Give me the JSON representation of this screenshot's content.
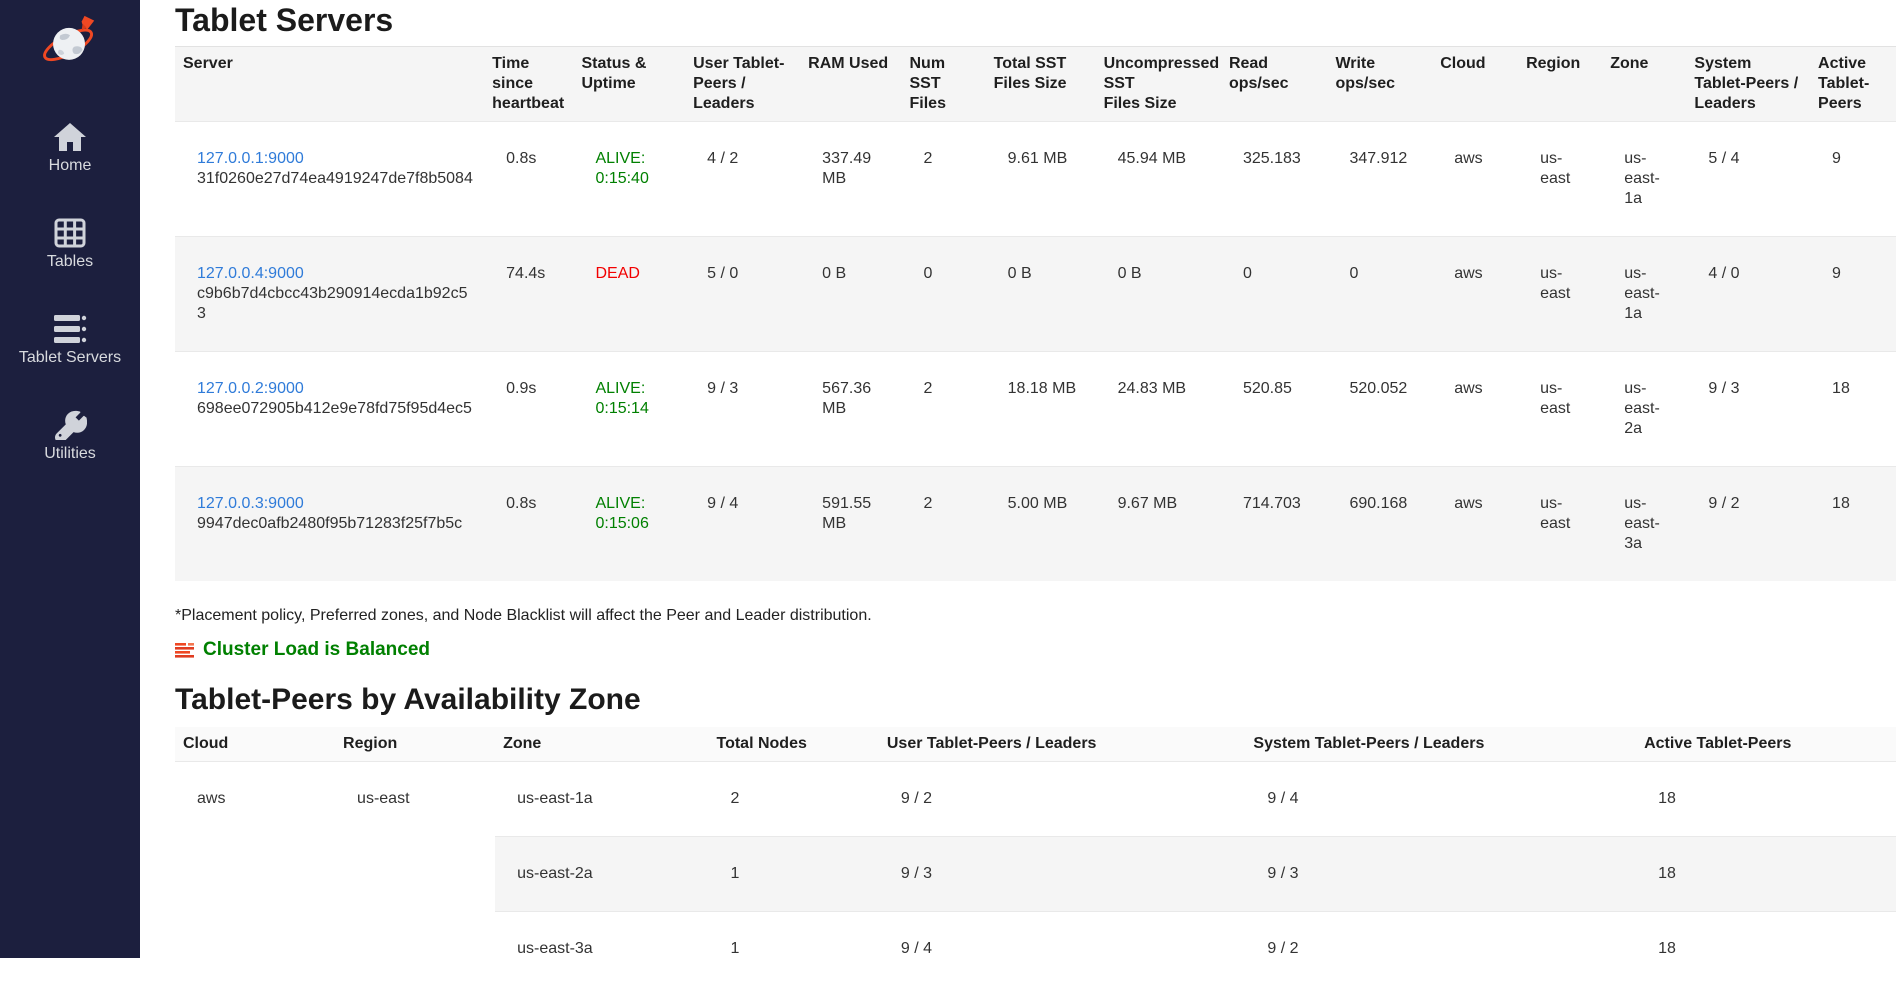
{
  "colors": {
    "link_blue": "#2f7bd9",
    "alive_green": "#008000",
    "dead_red": "#f20000",
    "balanced_green": "#008000",
    "sidebar_bg": "#1c1f3e",
    "brand_orange": "#ef4823"
  },
  "sidebar": {
    "logo_icon": "yugabyte-logo",
    "items": [
      {
        "label": "Home",
        "icon": "home-icon"
      },
      {
        "label": "Tables",
        "icon": "tables-icon"
      },
      {
        "label": "Tablet Servers",
        "icon": "tablet-servers-icon"
      },
      {
        "label": "Utilities",
        "icon": "utilities-wrench-icon"
      }
    ]
  },
  "page": {
    "title": "Tablet Servers",
    "footnote": "*Placement policy, Preferred zones, and Node Blacklist will affect the Peer and Leader distribution.",
    "balance_status": "Cluster Load is Balanced",
    "balance_icon": "load-balancer-icon"
  },
  "servers_table": {
    "columns": [
      "Server",
      "Time since heartbeat",
      "Status & Uptime",
      "User Tablet-Peers / Leaders",
      "RAM Used",
      "Num SST Files",
      "Total SST Files Size",
      "Uncompressed SST\nFiles Size",
      "Read ops/sec",
      "Write ops/sec",
      "Cloud",
      "Region",
      "Zone",
      "System Tablet-Peers / Leaders",
      "Active Tablet-Peers"
    ],
    "rows": [
      {
        "server": "127.0.0.1:9000",
        "uuid": "31f0260e27d74ea4919247de7f8b5084",
        "heartbeat": "0.8s",
        "status": "ALIVE:",
        "uptime": "0:15:40",
        "state": "alive",
        "user_peers": "4 / 2",
        "ram": "337.49 MB",
        "num_sst": "2",
        "sst_size": "9.61 MB",
        "uncompressed_sst_size": "45.94 MB",
        "read_ops": "325.183",
        "write_ops": "347.912",
        "cloud": "aws",
        "region": "us-east",
        "zone": "us-east-1a",
        "system_peers": "5 / 4",
        "active_peers": "9"
      },
      {
        "server": "127.0.0.4:9000",
        "uuid": "c9b6b7d4cbcc43b290914ecda1b92c53",
        "heartbeat": "74.4s",
        "status": "DEAD",
        "uptime": "",
        "state": "dead",
        "user_peers": "5 / 0",
        "ram": "0 B",
        "num_sst": "0",
        "sst_size": "0 B",
        "uncompressed_sst_size": "0 B",
        "read_ops": "0",
        "write_ops": "0",
        "cloud": "aws",
        "region": "us-east",
        "zone": "us-east-1a",
        "system_peers": "4 / 0",
        "active_peers": "9"
      },
      {
        "server": "127.0.0.2:9000",
        "uuid": "698ee072905b412e9e78fd75f95d4ec5",
        "heartbeat": "0.9s",
        "status": "ALIVE:",
        "uptime": "0:15:14",
        "state": "alive",
        "user_peers": "9 / 3",
        "ram": "567.36 MB",
        "num_sst": "2",
        "sst_size": "18.18 MB",
        "uncompressed_sst_size": "24.83 MB",
        "read_ops": "520.85",
        "write_ops": "520.052",
        "cloud": "aws",
        "region": "us-east",
        "zone": "us-east-2a",
        "system_peers": "9 / 3",
        "active_peers": "18"
      },
      {
        "server": "127.0.0.3:9000",
        "uuid": "9947dec0afb2480f95b71283f25f7b5c",
        "heartbeat": "0.8s",
        "status": "ALIVE:",
        "uptime": "0:15:06",
        "state": "alive",
        "user_peers": "9 / 4",
        "ram": "591.55 MB",
        "num_sst": "2",
        "sst_size": "5.00 MB",
        "uncompressed_sst_size": "9.67 MB",
        "read_ops": "714.703",
        "write_ops": "690.168",
        "cloud": "aws",
        "region": "us-east",
        "zone": "us-east-3a",
        "system_peers": "9 / 2",
        "active_peers": "18"
      }
    ]
  },
  "az_table": {
    "title": "Tablet-Peers by Availability Zone",
    "columns": [
      "Cloud",
      "Region",
      "Zone",
      "Total Nodes",
      "User Tablet-Peers / Leaders",
      "System Tablet-Peers / Leaders",
      "Active Tablet-Peers"
    ],
    "cloud": "aws",
    "region": "us-east",
    "rows": [
      {
        "zone": "us-east-1a",
        "total_nodes": "2",
        "user_peers": "9 / 2",
        "system_peers": "9 / 4",
        "active_peers": "18"
      },
      {
        "zone": "us-east-2a",
        "total_nodes": "1",
        "user_peers": "9 / 3",
        "system_peers": "9 / 3",
        "active_peers": "18"
      },
      {
        "zone": "us-east-3a",
        "total_nodes": "1",
        "user_peers": "9 / 4",
        "system_peers": "9 / 2",
        "active_peers": "18"
      }
    ]
  }
}
